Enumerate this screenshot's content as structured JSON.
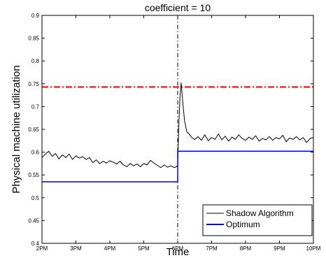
{
  "chart_data": {
    "type": "line",
    "title": "coefficient = 10",
    "xlabel": "Time",
    "ylabel": "Physical machine utilization",
    "xlim": [
      0,
      480
    ],
    "ylim": [
      0.4,
      0.9
    ],
    "x_ticks": [
      {
        "value": 0,
        "label": "2PM"
      },
      {
        "value": 60,
        "label": "3PM"
      },
      {
        "value": 120,
        "label": "4PM"
      },
      {
        "value": 180,
        "label": "5PM"
      },
      {
        "value": 240,
        "label": "6PM"
      },
      {
        "value": 300,
        "label": "7PM"
      },
      {
        "value": 360,
        "label": "8PM"
      },
      {
        "value": 420,
        "label": "9PM"
      },
      {
        "value": 480,
        "label": "10PM"
      }
    ],
    "y_ticks": [
      {
        "value": 0.4,
        "label": "0.4"
      },
      {
        "value": 0.45,
        "label": "0.45"
      },
      {
        "value": 0.5,
        "label": "0.5"
      },
      {
        "value": 0.55,
        "label": "0.55"
      },
      {
        "value": 0.6,
        "label": "0.6"
      },
      {
        "value": 0.65,
        "label": "0.65"
      },
      {
        "value": 0.7,
        "label": "0.7"
      },
      {
        "value": 0.75,
        "label": "0.75"
      },
      {
        "value": 0.8,
        "label": "0.8"
      },
      {
        "value": 0.85,
        "label": "0.85"
      },
      {
        "value": 0.9,
        "label": "0.9"
      }
    ],
    "grid": false,
    "legend_position": "bottom-right",
    "series": [
      {
        "name": "Shadow Algorithm",
        "color": "#000000",
        "x": [
          0,
          6,
          12,
          18,
          24,
          30,
          36,
          42,
          48,
          54,
          60,
          66,
          72,
          78,
          84,
          90,
          96,
          102,
          108,
          114,
          120,
          126,
          132,
          138,
          144,
          150,
          156,
          162,
          168,
          174,
          180,
          186,
          192,
          198,
          204,
          210,
          216,
          222,
          228,
          234,
          238,
          240,
          242,
          244,
          246,
          249,
          252,
          256,
          260,
          265,
          270,
          276,
          282,
          288,
          294,
          300,
          306,
          312,
          318,
          324,
          330,
          336,
          342,
          348,
          354,
          360,
          366,
          372,
          378,
          384,
          390,
          396,
          402,
          408,
          414,
          420,
          426,
          432,
          438,
          444,
          450,
          456,
          462,
          468,
          474,
          480
        ],
        "y": [
          0.588,
          0.596,
          0.602,
          0.591,
          0.597,
          0.585,
          0.594,
          0.588,
          0.596,
          0.584,
          0.592,
          0.587,
          0.59,
          0.584,
          0.588,
          0.577,
          0.583,
          0.575,
          0.58,
          0.576,
          0.581,
          0.578,
          0.574,
          0.58,
          0.572,
          0.568,
          0.575,
          0.57,
          0.574,
          0.568,
          0.575,
          0.572,
          0.582,
          0.576,
          0.571,
          0.566,
          0.572,
          0.567,
          0.57,
          0.566,
          0.568,
          0.572,
          0.66,
          0.72,
          0.752,
          0.71,
          0.67,
          0.645,
          0.64,
          0.632,
          0.628,
          0.634,
          0.626,
          0.638,
          0.625,
          0.632,
          0.628,
          0.64,
          0.627,
          0.635,
          0.624,
          0.633,
          0.628,
          0.638,
          0.63,
          0.626,
          0.633,
          0.628,
          0.636,
          0.624,
          0.63,
          0.627,
          0.634,
          0.626,
          0.632,
          0.629,
          0.637,
          0.623,
          0.631,
          0.628,
          0.634,
          0.627,
          0.632,
          0.621,
          0.63,
          0.632
        ]
      },
      {
        "name": "Optimum",
        "color": "#0000ff",
        "x": [
          0,
          240,
          240,
          480
        ],
        "y": [
          0.535,
          0.535,
          0.602,
          0.602
        ]
      }
    ],
    "reference_lines": [
      {
        "orientation": "horizontal",
        "value": 0.743,
        "color": "#ff0000",
        "style": "dash-dot"
      },
      {
        "orientation": "vertical",
        "value": 240,
        "color": "#000000",
        "style": "dash-dot"
      }
    ]
  }
}
